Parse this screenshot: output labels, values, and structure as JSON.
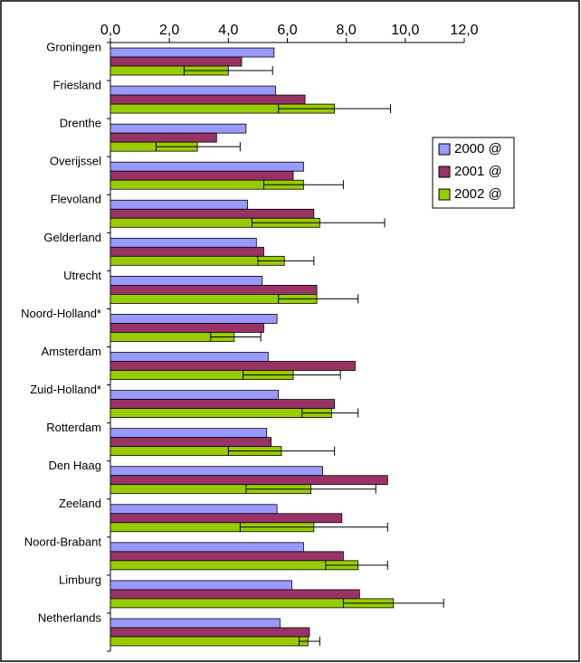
{
  "chart_data": {
    "type": "bar",
    "orientation": "horizontal",
    "categories": [
      "Groningen",
      "Friesland",
      "Drenthe",
      "Overijssel",
      "Flevoland",
      "Gelderland",
      "Utrecht",
      "Noord-Holland*",
      "Amsterdam",
      "Zuid-Holland*",
      "Rotterdam",
      "Den Haag",
      "Zeeland",
      "Noord-Brabant",
      "Limburg",
      "Netherlands"
    ],
    "series": [
      {
        "name": "2000 @",
        "color": "#9999ff",
        "values": [
          5.55,
          5.6,
          4.6,
          6.55,
          4.65,
          4.95,
          5.15,
          5.65,
          5.35,
          5.7,
          5.3,
          7.2,
          5.65,
          6.55,
          6.15,
          5.75
        ]
      },
      {
        "name": "2001 @",
        "color": "#993366",
        "values": [
          4.45,
          6.6,
          3.6,
          6.2,
          6.9,
          5.2,
          7.0,
          5.2,
          8.3,
          7.6,
          5.45,
          9.4,
          7.85,
          7.9,
          8.45,
          6.75
        ]
      },
      {
        "name": "2002 @",
        "color": "#99cc00",
        "values": [
          4.0,
          7.6,
          2.95,
          6.55,
          7.1,
          5.9,
          7.0,
          4.2,
          6.2,
          7.5,
          5.8,
          6.8,
          6.9,
          8.4,
          9.6,
          6.7
        ],
        "ci_low": [
          2.5,
          5.7,
          1.55,
          5.2,
          4.8,
          5.0,
          5.7,
          3.4,
          4.5,
          6.5,
          4.0,
          4.6,
          4.4,
          7.3,
          7.9,
          6.4
        ],
        "ci_high": [
          5.5,
          9.5,
          4.4,
          7.9,
          9.3,
          6.9,
          8.4,
          5.1,
          7.8,
          8.4,
          7.6,
          9.0,
          9.4,
          9.4,
          11.3,
          7.1
        ]
      }
    ],
    "xlim": [
      0,
      12
    ],
    "xticks": [
      {
        "value": 0,
        "label": "0,0"
      },
      {
        "value": 2,
        "label": "2,0"
      },
      {
        "value": 4,
        "label": "4,0"
      },
      {
        "value": 6,
        "label": "6,0"
      },
      {
        "value": 8,
        "label": "8,0"
      },
      {
        "value": 10,
        "label": "10,0"
      },
      {
        "value": 12,
        "label": "12,0"
      }
    ],
    "legend": "right"
  }
}
